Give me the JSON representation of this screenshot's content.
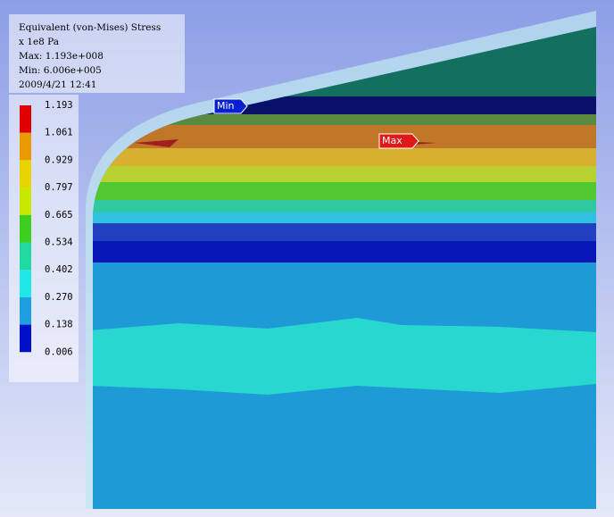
{
  "header": {
    "lines": [
      "Equivalent (von-Mises) Stress",
      "x 1e8 Pa",
      "Max: 1.193e+008",
      "Min: 6.006e+005",
      "2009/4/21 12:41"
    ]
  },
  "legend": {
    "labels": [
      "1.193",
      "1.061",
      "0.929",
      "0.797",
      "0.665",
      "0.534",
      "0.402",
      "0.270",
      "0.138",
      "0.006"
    ],
    "colors": [
      "#e00000",
      "#e89a00",
      "#e8d400",
      "#c8e800",
      "#3ccf1e",
      "#20d8a0",
      "#20e8e8",
      "#1ea0e0",
      "#0010c8"
    ]
  },
  "markers": {
    "min": "Min",
    "max": "Max"
  }
}
